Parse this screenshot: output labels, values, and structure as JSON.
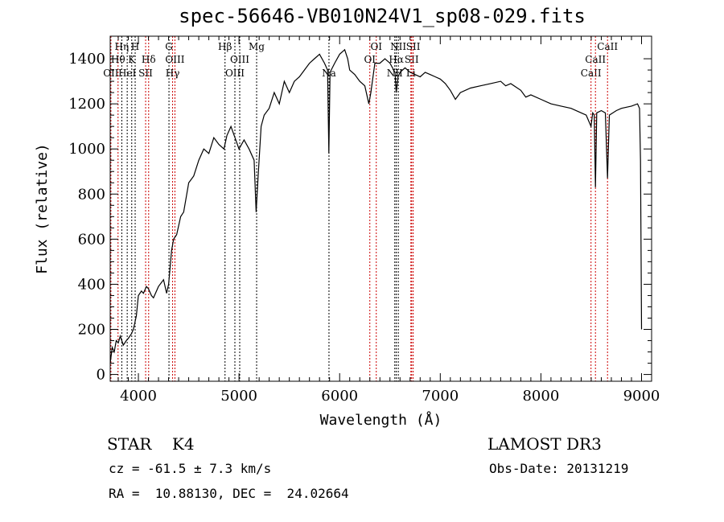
{
  "chart_data": {
    "type": "line",
    "title": "spec-56646-VB010N24V1_sp08-029.fits",
    "xlabel": "Wavelength (Å)",
    "ylabel": "Flux (relative)",
    "xlim": [
      3720,
      9100
    ],
    "ylim": [
      -30,
      1500
    ],
    "xticks": [
      4000,
      5000,
      6000,
      7000,
      8000,
      9000
    ],
    "yticks": [
      0,
      200,
      400,
      600,
      800,
      1000,
      1200,
      1400
    ],
    "series": [
      {
        "name": "spectrum",
        "x": [
          3720,
          3740,
          3760,
          3780,
          3800,
          3820,
          3850,
          3880,
          3900,
          3930,
          3950,
          3980,
          4000,
          4030,
          4050,
          4080,
          4100,
          4130,
          4150,
          4200,
          4250,
          4280,
          4300,
          4330,
          4350,
          4380,
          4420,
          4450,
          4500,
          4550,
          4600,
          4650,
          4700,
          4750,
          4800,
          4850,
          4880,
          4920,
          4960,
          5000,
          5050,
          5100,
          5150,
          5170,
          5190,
          5220,
          5250,
          5300,
          5350,
          5400,
          5450,
          5500,
          5550,
          5600,
          5650,
          5700,
          5750,
          5800,
          5850,
          5880,
          5893,
          5905,
          5950,
          6000,
          6050,
          6080,
          6100,
          6150,
          6200,
          6250,
          6290,
          6310,
          6350,
          6400,
          6450,
          6500,
          6550,
          6563,
          6580,
          6600,
          6650,
          6700,
          6750,
          6800,
          6850,
          6900,
          6950,
          7000,
          7050,
          7100,
          7150,
          7200,
          7300,
          7400,
          7500,
          7600,
          7650,
          7700,
          7800,
          7850,
          7900,
          8000,
          8100,
          8200,
          8300,
          8400,
          8450,
          8498,
          8515,
          8530,
          8542,
          8555,
          8600,
          8640,
          8662,
          8680,
          8750,
          8800,
          8900,
          8960,
          8980,
          8990,
          9000
        ],
        "y": [
          50,
          120,
          100,
          150,
          140,
          170,
          130,
          150,
          160,
          180,
          200,
          260,
          350,
          370,
          360,
          390,
          380,
          350,
          340,
          390,
          420,
          360,
          400,
          550,
          600,
          620,
          700,
          720,
          850,
          880,
          950,
          1000,
          980,
          1050,
          1020,
          1000,
          1060,
          1100,
          1050,
          1000,
          1040,
          1000,
          950,
          720,
          880,
          1100,
          1150,
          1180,
          1250,
          1200,
          1300,
          1250,
          1300,
          1320,
          1350,
          1380,
          1400,
          1420,
          1380,
          1350,
          980,
          1340,
          1380,
          1420,
          1440,
          1400,
          1350,
          1330,
          1300,
          1280,
          1200,
          1250,
          1380,
          1380,
          1400,
          1380,
          1340,
          1250,
          1320,
          1340,
          1360,
          1340,
          1330,
          1320,
          1340,
          1330,
          1320,
          1310,
          1290,
          1260,
          1220,
          1250,
          1270,
          1280,
          1290,
          1300,
          1280,
          1290,
          1260,
          1230,
          1240,
          1220,
          1200,
          1190,
          1180,
          1160,
          1150,
          1100,
          1160,
          1150,
          830,
          1160,
          1170,
          1160,
          870,
          1150,
          1170,
          1180,
          1190,
          1200,
          1180,
          950,
          200
        ]
      }
    ],
    "lines": [
      {
        "label": "OII",
        "w": 3727,
        "tier": 3,
        "color": "#cc0000"
      },
      {
        "label": "Hθ",
        "w": 3798,
        "tier": 2,
        "color": "#cc0000"
      },
      {
        "label": "Hη",
        "w": 3835,
        "tier": 1,
        "color": "#000000"
      },
      {
        "label": "HeI",
        "w": 3889,
        "tier": 3,
        "color": "#000000"
      },
      {
        "label": "K",
        "w": 3934,
        "tier": 2,
        "color": "#000000"
      },
      {
        "label": "H",
        "w": 3968,
        "tier": 1,
        "color": "#000000"
      },
      {
        "label": "SII",
        "w": 4072,
        "tier": 3,
        "color": "#cc0000"
      },
      {
        "label": "Hδ",
        "w": 4102,
        "tier": 2,
        "color": "#cc0000"
      },
      {
        "label": "G",
        "w": 4304,
        "tier": 1,
        "color": "#000000"
      },
      {
        "label": "Hγ",
        "w": 4340,
        "tier": 3,
        "color": "#cc0000"
      },
      {
        "label": "OIII",
        "w": 4363,
        "tier": 2,
        "color": "#cc0000"
      },
      {
        "label": "Hβ",
        "w": 4861,
        "tier": 1,
        "color": "#000000"
      },
      {
        "label": "OIII",
        "w": 4959,
        "tier": 3,
        "color": "#000000"
      },
      {
        "label": "OIII",
        "w": 5007,
        "tier": 2,
        "color": "#000000"
      },
      {
        "label": "Mg",
        "w": 5175,
        "tier": 1,
        "color": "#000000"
      },
      {
        "label": "Na",
        "w": 5894,
        "tier": 3,
        "color": "#000000"
      },
      {
        "label": "OI",
        "w": 6300,
        "tier": 2,
        "color": "#cc0000"
      },
      {
        "label": "OI",
        "w": 6364,
        "tier": 1,
        "color": "#cc0000"
      },
      {
        "label": "NII",
        "w": 6548,
        "tier": 3,
        "color": "#000000"
      },
      {
        "label": "Hα",
        "w": 6563,
        "tier": 2,
        "color": "#000000"
      },
      {
        "label": "NII",
        "w": 6583,
        "tier": 1,
        "color": "#000000"
      },
      {
        "label": "Li",
        "w": 6708,
        "tier": 3,
        "color": "#cc0000"
      },
      {
        "label": "SII",
        "w": 6716,
        "tier": 2,
        "color": "#cc0000"
      },
      {
        "label": "SII",
        "w": 6731,
        "tier": 1,
        "color": "#cc0000"
      },
      {
        "label": "CaII",
        "w": 8498,
        "tier": 3,
        "color": "#cc0000"
      },
      {
        "label": "CaII",
        "w": 8542,
        "tier": 2,
        "color": "#cc0000"
      },
      {
        "label": "CaII",
        "w": 8662,
        "tier": 1,
        "color": "#cc0000"
      }
    ]
  },
  "info": {
    "class": "STAR    K4",
    "survey": "LAMOST DR3",
    "cz": "cz = -61.5 ± 7.3 km/s",
    "obsdate": "Obs-Date: 20131219",
    "coords": "RA =  10.88130, DEC =  24.02664"
  }
}
